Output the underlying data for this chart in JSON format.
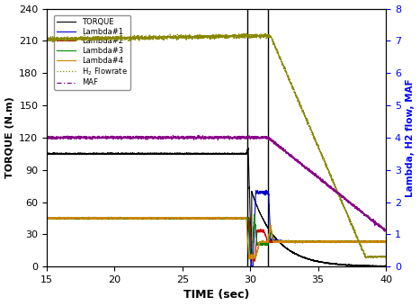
{
  "title": "",
  "xlabel": "TIME (sec)",
  "ylabel_left": "TORQUE (N.m)",
  "ylabel_right": "Lambda, H2 flow, MAF",
  "xlim": [
    15,
    40
  ],
  "ylim_left": [
    0,
    240
  ],
  "ylim_right": [
    0,
    8
  ],
  "xticks": [
    15,
    20,
    25,
    30,
    35,
    40
  ],
  "yticks_left": [
    0,
    30,
    60,
    90,
    120,
    150,
    180,
    210,
    240
  ],
  "yticks_right": [
    0,
    1,
    2,
    3,
    4,
    5,
    6,
    7,
    8
  ],
  "vlines": [
    29.8,
    31.3
  ],
  "legend_labels": [
    "TORQUE",
    "Lambda#1",
    "Lambda#2",
    "Lambda#3",
    "Lambda#4",
    "H$_2$ Flowrate",
    "MAF"
  ],
  "colors": {
    "torque": "#000000",
    "lambda1": "#0000cc",
    "lambda2": "#cc0000",
    "lambda3": "#008800",
    "lambda4": "#cc8800",
    "h2flow": "#888800",
    "maf": "#880088"
  }
}
